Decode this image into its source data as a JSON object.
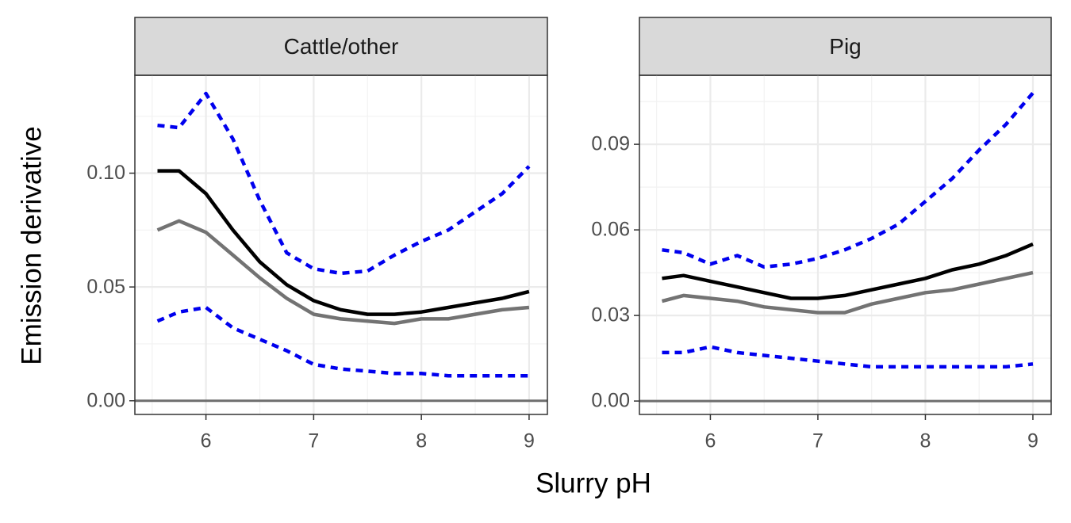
{
  "xlabel": "Slurry pH",
  "ylabel": "Emission derivative",
  "chart_data": [
    {
      "type": "line",
      "title": "Cattle/other",
      "x": [
        5.55,
        5.75,
        6.0,
        6.25,
        6.5,
        6.75,
        7.0,
        7.25,
        7.5,
        7.75,
        8.0,
        8.25,
        8.5,
        8.75,
        9.0
      ],
      "series": [
        {
          "color": "#0000ee",
          "dashed": true,
          "values": [
            0.121,
            0.12,
            0.135,
            0.115,
            0.088,
            0.065,
            0.058,
            0.056,
            0.057,
            0.064,
            0.07,
            0.075,
            0.083,
            0.091,
            0.103
          ]
        },
        {
          "color": "#0000ee",
          "dashed": true,
          "values": [
            0.035,
            0.039,
            0.041,
            0.032,
            0.027,
            0.022,
            0.016,
            0.014,
            0.013,
            0.012,
            0.012,
            0.011,
            0.011,
            0.011,
            0.011
          ]
        },
        {
          "color": "#737373",
          "dashed": false,
          "values": [
            0.075,
            0.079,
            0.074,
            0.064,
            0.054,
            0.045,
            0.038,
            0.036,
            0.035,
            0.034,
            0.036,
            0.036,
            0.038,
            0.04,
            0.041
          ]
        },
        {
          "color": "#000000",
          "dashed": false,
          "values": [
            0.101,
            0.101,
            0.091,
            0.075,
            0.061,
            0.051,
            0.044,
            0.04,
            0.038,
            0.038,
            0.039,
            0.041,
            0.043,
            0.045,
            0.048
          ]
        }
      ],
      "hline": 0,
      "hline_color": "#6e6e6e",
      "xlim": [
        5.34,
        9.17
      ],
      "xticks": [
        6,
        7,
        8,
        9
      ],
      "ylim": [
        -0.006,
        0.143
      ],
      "yticks": [
        {
          "value": 0,
          "label": "0.00"
        },
        {
          "value": 0.05,
          "label": "0.05"
        },
        {
          "value": 0.1,
          "label": "0.10"
        }
      ],
      "grid": true
    },
    {
      "type": "line",
      "title": "Pig",
      "x": [
        5.55,
        5.75,
        6.0,
        6.25,
        6.5,
        6.75,
        7.0,
        7.25,
        7.5,
        7.75,
        8.0,
        8.25,
        8.5,
        8.75,
        9.0
      ],
      "series": [
        {
          "color": "#0000ee",
          "dashed": true,
          "values": [
            0.053,
            0.052,
            0.048,
            0.051,
            0.047,
            0.048,
            0.05,
            0.053,
            0.057,
            0.062,
            0.07,
            0.078,
            0.088,
            0.097,
            0.108
          ]
        },
        {
          "color": "#0000ee",
          "dashed": true,
          "values": [
            0.017,
            0.017,
            0.019,
            0.017,
            0.016,
            0.015,
            0.014,
            0.013,
            0.012,
            0.012,
            0.012,
            0.012,
            0.012,
            0.012,
            0.013
          ]
        },
        {
          "color": "#737373",
          "dashed": false,
          "values": [
            0.035,
            0.037,
            0.036,
            0.035,
            0.033,
            0.032,
            0.031,
            0.031,
            0.034,
            0.036,
            0.038,
            0.039,
            0.041,
            0.043,
            0.045
          ]
        },
        {
          "color": "#000000",
          "dashed": false,
          "values": [
            0.043,
            0.044,
            0.042,
            0.04,
            0.038,
            0.036,
            0.036,
            0.037,
            0.039,
            0.041,
            0.043,
            0.046,
            0.048,
            0.051,
            0.055
          ]
        }
      ],
      "hline": 0,
      "hline_color": "#6e6e6e",
      "xlim": [
        5.34,
        9.17
      ],
      "xticks": [
        6,
        7,
        8,
        9
      ],
      "ylim": [
        -0.0047,
        0.1142
      ],
      "yticks": [
        {
          "value": 0,
          "label": "0.00"
        },
        {
          "value": 0.03,
          "label": "0.03"
        },
        {
          "value": 0.06,
          "label": "0.06"
        },
        {
          "value": 0.09,
          "label": "0.09"
        }
      ],
      "grid": true
    }
  ]
}
